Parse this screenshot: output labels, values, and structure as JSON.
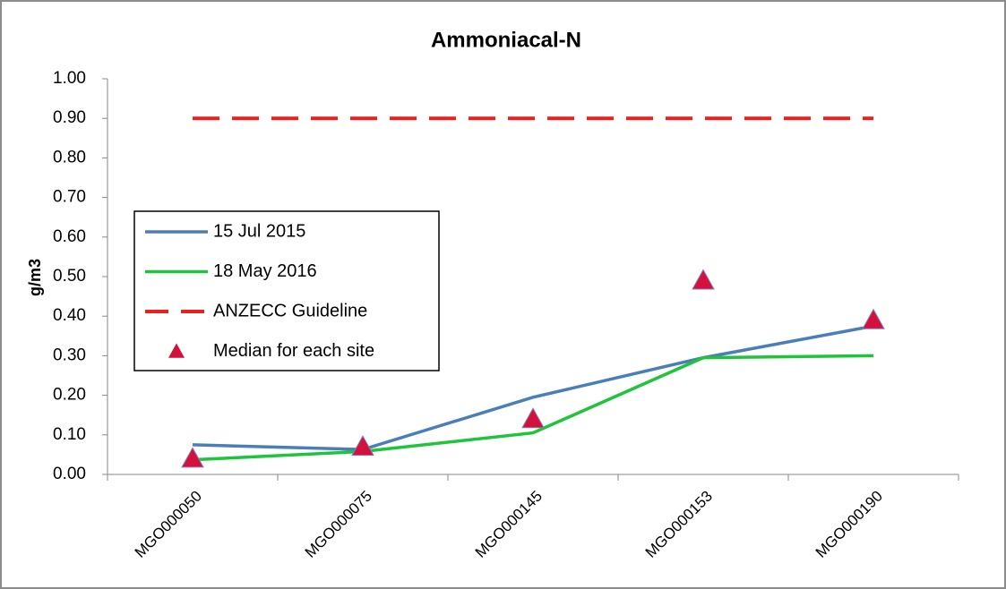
{
  "chart_data": {
    "type": "line",
    "title": "Ammoniacal-N",
    "y_label": "g/m3",
    "categories": [
      "MGO000050",
      "MGO000075",
      "MGO000145",
      "MGO000153",
      "MGO000190"
    ],
    "series": [
      {
        "name": "15 Jul 2015",
        "color": "#4a7ebb",
        "line": "solid",
        "values": [
          0.075,
          0.063,
          0.195,
          0.295,
          0.375
        ]
      },
      {
        "name": "18 May 2016",
        "color": "#1ec43a",
        "line": "solid",
        "values": [
          0.037,
          0.058,
          0.105,
          0.295,
          0.3
        ]
      },
      {
        "name": "ANZECC Guideline",
        "color": "#e8201e",
        "line": "dashed",
        "values": [
          0.9,
          0.9,
          0.9,
          0.9,
          0.9
        ]
      },
      {
        "name": "Median for each site",
        "color": "#d4103c",
        "line": "none",
        "marker": "triangle",
        "values": [
          0.04,
          0.07,
          0.14,
          0.49,
          0.39
        ]
      }
    ],
    "ylim": [
      0,
      1
    ],
    "yticks": [
      {
        "value": 0,
        "label": "0.00"
      },
      {
        "value": 0.1,
        "label": "0.10"
      },
      {
        "value": 0.2,
        "label": "0.20"
      },
      {
        "value": 0.3,
        "label": "0.30"
      },
      {
        "value": 0.4,
        "label": "0.40"
      },
      {
        "value": 0.5,
        "label": "0.50"
      },
      {
        "value": 0.6,
        "label": "0.60"
      },
      {
        "value": 0.7,
        "label": "0.70"
      },
      {
        "value": 0.8,
        "label": "0.80"
      },
      {
        "value": 0.9,
        "label": "0.90"
      },
      {
        "value": 1,
        "label": "1.00"
      }
    ],
    "grid": false,
    "legend": "left"
  }
}
